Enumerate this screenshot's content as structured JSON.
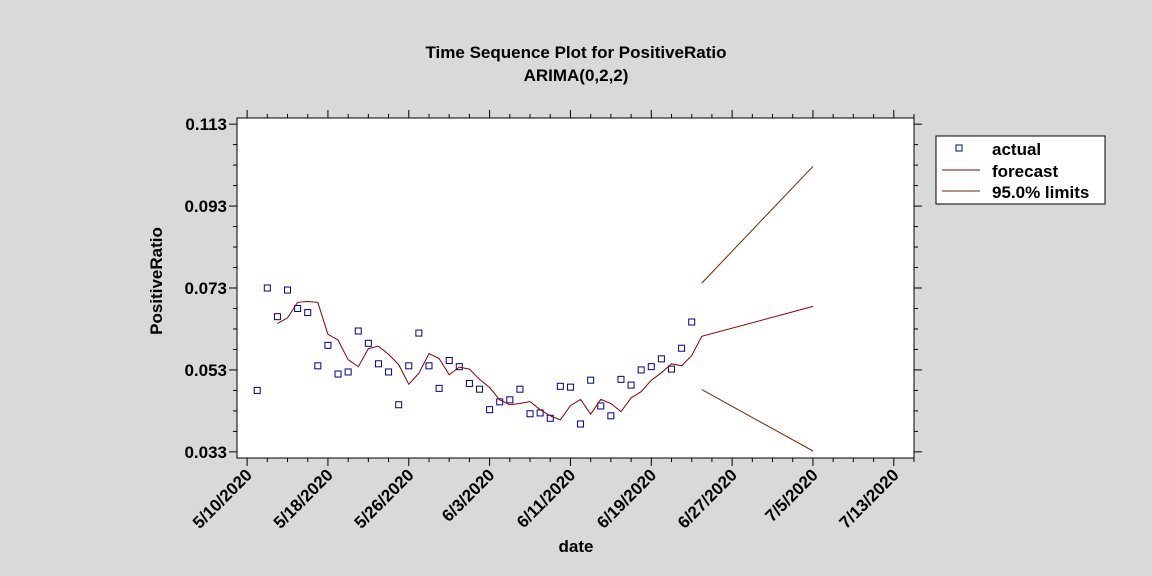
{
  "chart_data": {
    "type": "line",
    "title": "Time Sequence Plot for PositiveRatio",
    "subtitle": "ARIMA(0,2,2)",
    "xlabel": "date",
    "ylabel": "PositiveRatio",
    "x_range": [
      "2020-05-09",
      "2020-07-15"
    ],
    "ylim": [
      0.0315,
      0.1145
    ],
    "y_ticks": [
      0.033,
      0.053,
      0.073,
      0.093,
      0.113
    ],
    "y_tick_labels": [
      "0.033",
      "0.053",
      "0.073",
      "0.093",
      "0.113"
    ],
    "x_ticks": [
      "2020-05-10",
      "2020-05-18",
      "2020-05-26",
      "2020-06-03",
      "2020-06-11",
      "2020-06-19",
      "2020-06-27",
      "2020-07-05",
      "2020-07-13"
    ],
    "x_tick_labels": [
      "5/10/2020",
      "5/18/2020",
      "5/26/2020",
      "6/3/2020",
      "6/11/2020",
      "6/19/2020",
      "6/27/2020",
      "7/5/2020",
      "7/13/2020"
    ],
    "legend": {
      "position": "top-right",
      "entries": [
        "actual",
        "forecast",
        "95.0% limits"
      ]
    },
    "colors": {
      "actual": "#00008b",
      "forecast": "#8b0000",
      "limits": "#6b2a00",
      "background": "#d9d9d9",
      "plot": "#ffffff"
    },
    "series": [
      {
        "name": "actual",
        "marker": "square",
        "points": [
          [
            "2020-05-11",
            0.048
          ],
          [
            "2020-05-12",
            0.073
          ],
          [
            "2020-05-13",
            0.066
          ],
          [
            "2020-05-14",
            0.0725
          ],
          [
            "2020-05-15",
            0.068
          ],
          [
            "2020-05-16",
            0.067
          ],
          [
            "2020-05-17",
            0.054
          ],
          [
            "2020-05-18",
            0.059
          ],
          [
            "2020-05-19",
            0.052
          ],
          [
            "2020-05-20",
            0.0525
          ],
          [
            "2020-05-21",
            0.0625
          ],
          [
            "2020-05-22",
            0.0595
          ],
          [
            "2020-05-23",
            0.0545
          ],
          [
            "2020-05-24",
            0.0525
          ],
          [
            "2020-05-25",
            0.0445
          ],
          [
            "2020-05-26",
            0.054
          ],
          [
            "2020-05-27",
            0.062
          ],
          [
            "2020-05-28",
            0.054
          ],
          [
            "2020-05-29",
            0.0485
          ],
          [
            "2020-05-30",
            0.0553
          ],
          [
            "2020-05-31",
            0.0538
          ],
          [
            "2020-06-01",
            0.0497
          ],
          [
            "2020-06-02",
            0.0483
          ],
          [
            "2020-06-03",
            0.0433
          ],
          [
            "2020-06-04",
            0.0452
          ],
          [
            "2020-06-05",
            0.0457
          ],
          [
            "2020-06-06",
            0.0483
          ],
          [
            "2020-06-07",
            0.0423
          ],
          [
            "2020-06-08",
            0.0425
          ],
          [
            "2020-06-09",
            0.0412
          ],
          [
            "2020-06-10",
            0.049
          ],
          [
            "2020-06-11",
            0.0488
          ],
          [
            "2020-06-12",
            0.0398
          ],
          [
            "2020-06-13",
            0.0505
          ],
          [
            "2020-06-14",
            0.0442
          ],
          [
            "2020-06-15",
            0.0418
          ],
          [
            "2020-06-16",
            0.0507
          ],
          [
            "2020-06-17",
            0.0493
          ],
          [
            "2020-06-18",
            0.053
          ],
          [
            "2020-06-19",
            0.0538
          ],
          [
            "2020-06-20",
            0.0557
          ],
          [
            "2020-06-21",
            0.0532
          ],
          [
            "2020-06-22",
            0.0583
          ],
          [
            "2020-06-23",
            0.0647
          ]
        ]
      },
      {
        "name": "forecast",
        "line": "solid",
        "points": [
          [
            "2020-05-13",
            0.0643
          ],
          [
            "2020-05-14",
            0.0657
          ],
          [
            "2020-05-15",
            0.0695
          ],
          [
            "2020-05-16",
            0.0697
          ],
          [
            "2020-05-17",
            0.0695
          ],
          [
            "2020-05-18",
            0.0617
          ],
          [
            "2020-05-19",
            0.0603
          ],
          [
            "2020-05-20",
            0.0555
          ],
          [
            "2020-05-21",
            0.0538
          ],
          [
            "2020-05-22",
            0.0582
          ],
          [
            "2020-05-23",
            0.0588
          ],
          [
            "2020-05-24",
            0.0568
          ],
          [
            "2020-05-25",
            0.0543
          ],
          [
            "2020-05-26",
            0.0495
          ],
          [
            "2020-05-27",
            0.0522
          ],
          [
            "2020-05-28",
            0.057
          ],
          [
            "2020-05-29",
            0.0558
          ],
          [
            "2020-05-30",
            0.0518
          ],
          [
            "2020-05-31",
            0.0537
          ],
          [
            "2020-06-01",
            0.0532
          ],
          [
            "2020-06-02",
            0.0507
          ],
          [
            "2020-06-03",
            0.0487
          ],
          [
            "2020-06-04",
            0.0457
          ],
          [
            "2020-06-05",
            0.0445
          ],
          [
            "2020-06-06",
            0.0448
          ],
          [
            "2020-06-07",
            0.0453
          ],
          [
            "2020-06-08",
            0.0433
          ],
          [
            "2020-06-09",
            0.0418
          ],
          [
            "2020-06-10",
            0.0408
          ],
          [
            "2020-06-11",
            0.0443
          ],
          [
            "2020-06-12",
            0.0458
          ],
          [
            "2020-06-13",
            0.0422
          ],
          [
            "2020-06-14",
            0.0458
          ],
          [
            "2020-06-15",
            0.0448
          ],
          [
            "2020-06-16",
            0.0428
          ],
          [
            "2020-06-17",
            0.0462
          ],
          [
            "2020-06-18",
            0.0477
          ],
          [
            "2020-06-19",
            0.0505
          ],
          [
            "2020-06-20",
            0.0523
          ],
          [
            "2020-06-21",
            0.0545
          ],
          [
            "2020-06-22",
            0.054
          ],
          [
            "2020-06-23",
            0.0565
          ],
          [
            "2020-06-24",
            0.0612
          ],
          [
            "2020-07-05",
            0.0685
          ]
        ]
      },
      {
        "name": "95.0% upper limit",
        "line": "solid",
        "points": [
          [
            "2020-06-24",
            0.0742
          ],
          [
            "2020-07-05",
            0.1027
          ]
        ]
      },
      {
        "name": "95.0% lower limit",
        "line": "solid",
        "points": [
          [
            "2020-06-24",
            0.0482
          ],
          [
            "2020-07-05",
            0.0332
          ]
        ]
      }
    ]
  }
}
